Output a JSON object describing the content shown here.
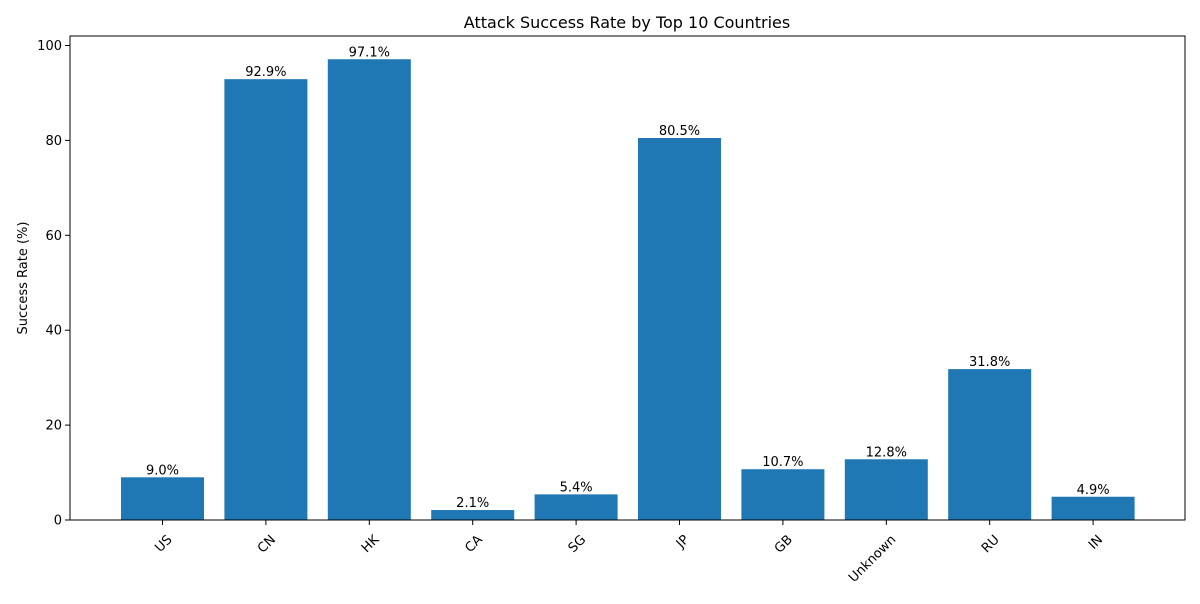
{
  "chart_data": {
    "type": "bar",
    "title": "Attack Success Rate by Top 10 Countries",
    "xlabel": "",
    "ylabel": "Success Rate (%)",
    "categories": [
      "US",
      "CN",
      "HK",
      "CA",
      "SG",
      "JP",
      "GB",
      "Unknown",
      "RU",
      "IN"
    ],
    "values": [
      9.0,
      92.9,
      97.1,
      2.1,
      5.4,
      80.5,
      10.7,
      12.8,
      31.8,
      4.9
    ],
    "value_labels": [
      "9.0%",
      "92.9%",
      "97.1%",
      "2.1%",
      "5.4%",
      "80.5%",
      "10.7%",
      "12.8%",
      "31.8%",
      "4.9%"
    ],
    "ylim": [
      0,
      102
    ],
    "yticks": [
      0,
      20,
      40,
      60,
      80,
      100
    ],
    "ytick_labels": [
      "0",
      "20",
      "40",
      "60",
      "80",
      "100"
    ],
    "bar_color": "#1f77b4",
    "grid": false,
    "legend": "none"
  }
}
